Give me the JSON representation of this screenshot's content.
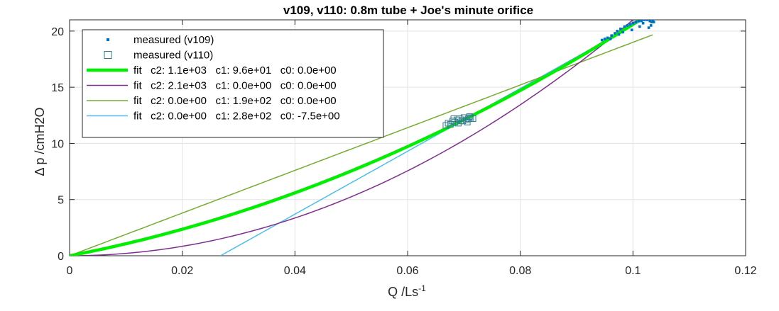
{
  "chart_data": {
    "type": "scatter",
    "title": "v109, v110: 0.8m tube + Joe's minute orifice",
    "xlabel": "Q /Ls",
    "xlabel_superscript": "-1",
    "ylabel": "Δ p /cmH2O",
    "xlim": [
      0,
      0.12
    ],
    "ylim": [
      0,
      21
    ],
    "xticks": [
      0,
      0.02,
      0.04,
      0.06,
      0.08,
      0.1,
      0.12
    ],
    "xtick_labels": [
      "0",
      "0.02",
      "0.04",
      "0.06",
      "0.08",
      "0.1",
      "0.12"
    ],
    "yticks": [
      0,
      5,
      10,
      15,
      20
    ],
    "ytick_labels": [
      "0",
      "5",
      "10",
      "15",
      "20"
    ],
    "grid": true,
    "legend_position": "top-left",
    "series": [
      {
        "name": "measured (v109)",
        "marker": "point",
        "color": "#0072BD",
        "x": [
          0.0945,
          0.095,
          0.0955,
          0.0962,
          0.0968,
          0.0972,
          0.0978,
          0.0985,
          0.099,
          0.0995,
          0.1,
          0.1005,
          0.101,
          0.1015,
          0.102,
          0.1025,
          0.103,
          0.1033,
          0.1035,
          0.1037,
          0.1032,
          0.1028,
          0.0998,
          0.0982,
          0.0975,
          0.096,
          0.1018,
          0.1012
        ],
        "y": [
          19.2,
          19.3,
          19.4,
          19.6,
          19.8,
          20.0,
          20.2,
          20.4,
          20.5,
          20.6,
          20.7,
          20.8,
          20.9,
          20.9,
          21.0,
          21.0,
          20.9,
          20.8,
          20.9,
          20.8,
          20.5,
          20.3,
          20.1,
          19.9,
          19.7,
          19.3,
          20.7,
          20.4
        ]
      },
      {
        "name": "measured (v110)",
        "marker": "square",
        "color": "#2E7D8C",
        "x": [
          0.0668,
          0.0672,
          0.0676,
          0.068,
          0.0684,
          0.0688,
          0.0692,
          0.0696,
          0.07,
          0.0704,
          0.0708,
          0.0712,
          0.0716,
          0.069,
          0.0698,
          0.0706,
          0.0682,
          0.071
        ],
        "y": [
          11.6,
          11.8,
          11.7,
          12.0,
          11.9,
          12.1,
          12.2,
          12.0,
          12.3,
          12.1,
          12.2,
          12.3,
          12.2,
          11.8,
          12.0,
          11.9,
          12.2,
          12.4
        ]
      }
    ],
    "fits": [
      {
        "name": "fit   c2: 1.1e+03   c1: 9.6e+01   c0: 0.0e+00",
        "c2": 1100,
        "c1": 96,
        "c0": 0,
        "color": "#00EE00",
        "width": 4.5,
        "xrange": [
          0,
          0.1035
        ]
      },
      {
        "name": "fit   c2: 2.1e+03   c1: 0.0e+00   c0: 0.0e+00",
        "c2": 2100,
        "c1": 0,
        "c0": 0,
        "color": "#7E2F8E",
        "width": 1.5,
        "xrange": [
          0,
          0.1005
        ]
      },
      {
        "name": "fit   c2: 0.0e+00   c1: 1.9e+02   c0: 0.0e+00",
        "c2": 0,
        "c1": 190,
        "c0": 0,
        "color": "#77AC30",
        "width": 1.5,
        "xrange": [
          0,
          0.1035
        ]
      },
      {
        "name": "fit   c2: 0.0e+00   c1: 2.8e+02   c0: -7.5e+00",
        "c2": 0,
        "c1": 280,
        "c0": -7.5,
        "color": "#4DBEEE",
        "width": 1.5,
        "xrange": [
          0.0268,
          0.1035
        ]
      }
    ]
  }
}
